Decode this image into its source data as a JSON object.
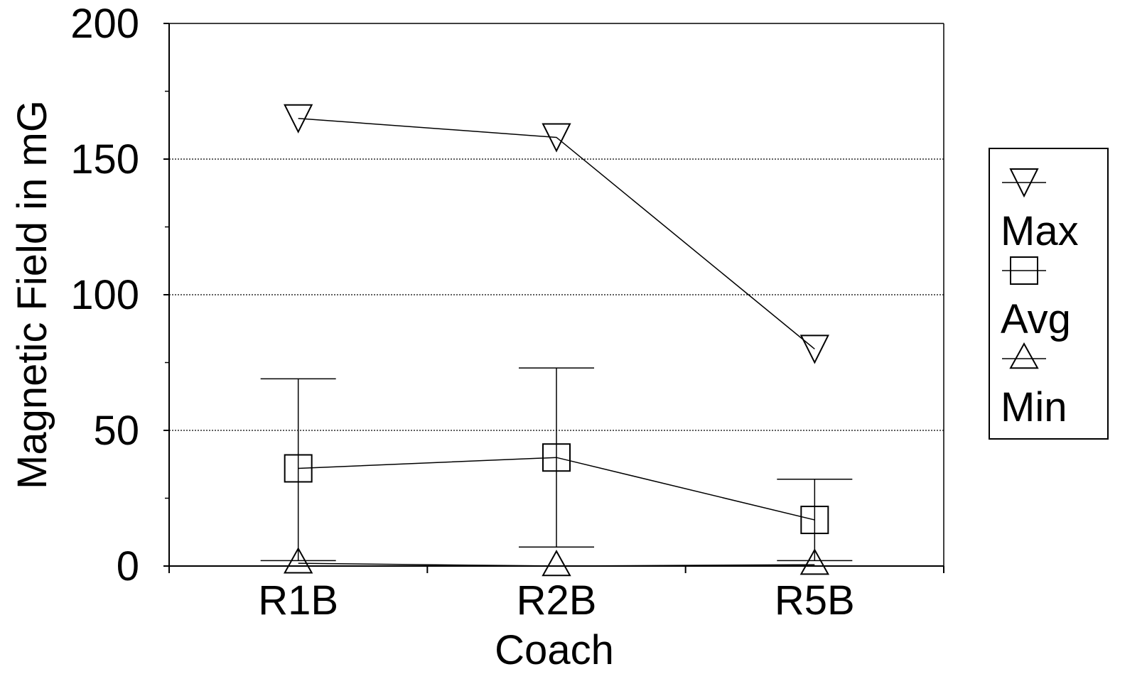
{
  "chart_data": {
    "type": "line",
    "title": "",
    "xlabel": "Coach",
    "ylabel": "Magnetic Field in mG",
    "categories": [
      "R1B",
      "R2B",
      "R5B"
    ],
    "ylim": [
      0,
      200
    ],
    "yticks": [
      "0",
      "50",
      "100",
      "150",
      "200"
    ],
    "grid": "horizontal dotted at 50, 100, 150",
    "legend_position": "right",
    "series": [
      {
        "name": "Max",
        "marker": "triangle-down",
        "values": [
          165,
          158,
          80
        ]
      },
      {
        "name": "Avg",
        "marker": "square",
        "values": [
          36,
          40,
          17
        ],
        "error_bars": {
          "upper": [
            69,
            73,
            32
          ],
          "lower": [
            2,
            7,
            2
          ]
        }
      },
      {
        "name": "Min",
        "marker": "triangle-up",
        "values": [
          1,
          0,
          0.5
        ]
      }
    ],
    "colors": {
      "line": "#000000",
      "grid": "#000000",
      "background": "#ffffff"
    }
  }
}
